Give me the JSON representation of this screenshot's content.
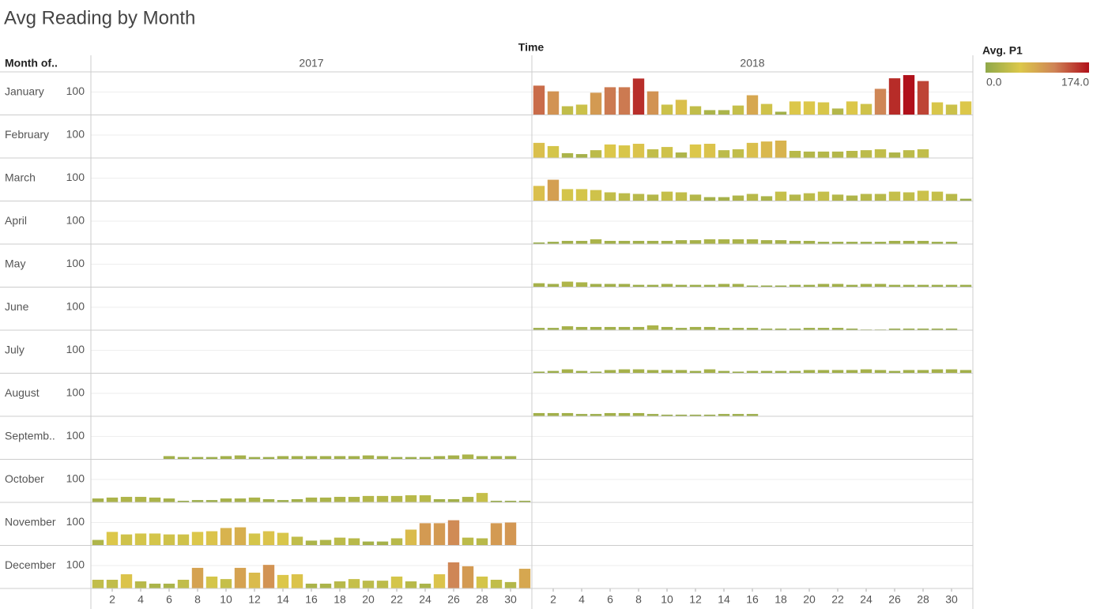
{
  "chart_data": {
    "type": "bar",
    "title": "Avg Reading by Month",
    "column_header": "Time",
    "row_header": "Month of..",
    "columns": [
      "2017",
      "2018"
    ],
    "x": [
      1,
      2,
      3,
      4,
      5,
      6,
      7,
      8,
      9,
      10,
      11,
      12,
      13,
      14,
      15,
      16,
      17,
      18,
      19,
      20,
      21,
      22,
      23,
      24,
      25,
      26,
      27,
      28,
      29,
      30,
      31
    ],
    "xlim": [
      0.5,
      31.5
    ],
    "xticks": [
      2,
      4,
      6,
      8,
      10,
      12,
      14,
      16,
      18,
      20,
      22,
      24,
      26,
      28,
      30
    ],
    "ylim": [
      0,
      188
    ],
    "yticks": [
      100
    ],
    "grid": true,
    "color_legend": {
      "title": "Avg. P1",
      "colors": [
        "#8fa84a",
        "#dcc84a",
        "#cf8456",
        "#b0101a"
      ],
      "range": [
        {
          "value": 0,
          "label": "0.0"
        },
        {
          "value": 174,
          "label": "174.0"
        }
      ]
    },
    "rows": [
      {
        "label": "January",
        "values": [
          [
            null,
            null,
            null,
            null,
            null,
            null,
            null,
            null,
            null,
            null,
            null,
            null,
            null,
            null,
            null,
            null,
            null,
            null,
            null,
            null,
            null,
            null,
            null,
            null,
            null,
            null,
            null,
            null,
            null,
            null,
            null
          ],
          [
            128,
            103,
            38,
            45,
            97,
            121,
            121,
            159,
            103,
            45,
            66,
            38,
            21,
            21,
            41,
            86,
            48,
            14,
            59,
            59,
            55,
            28,
            59,
            48,
            114,
            160,
            174,
            148,
            55,
            45,
            59
          ]
        ]
      },
      {
        "label": "February",
        "values": [
          [
            null,
            null,
            null,
            null,
            null,
            null,
            null,
            null,
            null,
            null,
            null,
            null,
            null,
            null,
            null,
            null,
            null,
            null,
            null,
            null,
            null,
            null,
            null,
            null,
            null,
            null,
            null,
            null,
            null,
            null,
            null
          ],
          [
            66,
            52,
            21,
            17,
            34,
            59,
            55,
            62,
            38,
            48,
            24,
            59,
            62,
            34,
            38,
            66,
            72,
            76,
            31,
            28,
            28,
            28,
            31,
            34,
            38,
            24,
            34,
            38,
            null,
            null,
            null
          ]
        ]
      },
      {
        "label": "March",
        "values": [
          [
            null,
            null,
            null,
            null,
            null,
            null,
            null,
            null,
            null,
            null,
            null,
            null,
            null,
            null,
            null,
            null,
            null,
            null,
            null,
            null,
            null,
            null,
            null,
            null,
            null,
            null,
            null,
            null,
            null,
            null,
            null
          ],
          [
            66,
            93,
            52,
            52,
            48,
            38,
            34,
            31,
            28,
            41,
            38,
            28,
            17,
            17,
            24,
            31,
            21,
            41,
            28,
            34,
            41,
            28,
            24,
            31,
            31,
            41,
            38,
            45,
            41,
            31,
            10
          ]
        ]
      },
      {
        "label": "April",
        "values": [
          [
            null,
            null,
            null,
            null,
            null,
            null,
            null,
            null,
            null,
            null,
            null,
            null,
            null,
            null,
            null,
            null,
            null,
            null,
            null,
            null,
            null,
            null,
            null,
            null,
            null,
            null,
            null,
            null,
            null,
            null,
            null
          ],
          [
            7,
            10,
            14,
            14,
            21,
            14,
            14,
            14,
            14,
            14,
            17,
            17,
            21,
            21,
            21,
            21,
            17,
            17,
            14,
            14,
            10,
            10,
            10,
            10,
            10,
            14,
            14,
            14,
            10,
            10,
            null
          ]
        ]
      },
      {
        "label": "May",
        "values": [
          [
            null,
            null,
            null,
            null,
            null,
            null,
            null,
            null,
            null,
            null,
            null,
            null,
            null,
            null,
            null,
            null,
            null,
            null,
            null,
            null,
            null,
            null,
            null,
            null,
            null,
            null,
            null,
            null,
            null,
            null,
            null
          ],
          [
            17,
            14,
            24,
            21,
            14,
            14,
            14,
            10,
            10,
            14,
            10,
            10,
            10,
            14,
            14,
            7,
            7,
            7,
            10,
            10,
            14,
            14,
            10,
            14,
            14,
            10,
            10,
            10,
            10,
            10,
            10
          ]
        ]
      },
      {
        "label": "June",
        "values": [
          [
            null,
            null,
            null,
            null,
            null,
            null,
            null,
            null,
            null,
            null,
            null,
            null,
            null,
            null,
            null,
            null,
            null,
            null,
            null,
            null,
            null,
            null,
            null,
            null,
            null,
            null,
            null,
            null,
            null,
            null,
            null
          ],
          [
            10,
            10,
            17,
            14,
            14,
            14,
            14,
            14,
            21,
            14,
            10,
            14,
            14,
            10,
            10,
            10,
            7,
            7,
            7,
            10,
            10,
            10,
            7,
            3,
            3,
            7,
            7,
            7,
            7,
            7,
            null
          ]
        ]
      },
      {
        "label": "July",
        "values": [
          [
            null,
            null,
            null,
            null,
            null,
            null,
            null,
            null,
            null,
            null,
            null,
            null,
            null,
            null,
            null,
            null,
            null,
            null,
            null,
            null,
            null,
            null,
            null,
            null,
            null,
            null,
            null,
            null,
            null,
            null,
            null
          ],
          [
            7,
            10,
            17,
            10,
            7,
            14,
            17,
            17,
            14,
            14,
            14,
            10,
            17,
            10,
            7,
            10,
            10,
            10,
            10,
            14,
            14,
            14,
            14,
            17,
            14,
            10,
            14,
            14,
            17,
            17,
            14
          ]
        ]
      },
      {
        "label": "August",
        "values": [
          [
            null,
            null,
            null,
            null,
            null,
            null,
            null,
            null,
            null,
            null,
            null,
            null,
            null,
            null,
            null,
            null,
            null,
            null,
            null,
            null,
            null,
            null,
            null,
            null,
            null,
            null,
            null,
            null,
            null,
            null,
            null
          ],
          [
            14,
            14,
            14,
            10,
            10,
            14,
            14,
            14,
            10,
            7,
            7,
            7,
            7,
            10,
            10,
            10,
            null,
            null,
            null,
            null,
            null,
            null,
            null,
            null,
            null,
            null,
            null,
            null,
            null,
            null,
            null
          ]
        ]
      },
      {
        "label": "Septemb..",
        "values": [
          [
            null,
            null,
            null,
            null,
            null,
            14,
            10,
            10,
            10,
            14,
            17,
            10,
            10,
            14,
            14,
            14,
            14,
            14,
            14,
            17,
            14,
            10,
            10,
            10,
            14,
            17,
            21,
            14,
            14,
            14,
            null
          ],
          [
            null,
            null,
            null,
            null,
            null,
            null,
            null,
            null,
            null,
            null,
            null,
            null,
            null,
            null,
            null,
            null,
            null,
            null,
            null,
            null,
            null,
            null,
            null,
            null,
            null,
            null,
            null,
            null,
            null,
            null,
            null
          ]
        ]
      },
      {
        "label": "October",
        "values": [
          [
            17,
            21,
            24,
            24,
            21,
            17,
            7,
            10,
            10,
            17,
            17,
            21,
            14,
            10,
            14,
            21,
            21,
            24,
            24,
            28,
            28,
            28,
            31,
            31,
            14,
            14,
            24,
            41,
            7,
            7,
            7
          ],
          [
            null,
            null,
            null,
            null,
            null,
            null,
            null,
            null,
            null,
            null,
            null,
            null,
            null,
            null,
            null,
            null,
            null,
            null,
            null,
            null,
            null,
            null,
            null,
            null,
            null,
            null,
            null,
            null,
            null,
            null,
            null
          ]
        ]
      },
      {
        "label": "November",
        "values": [
          [
            24,
            59,
            48,
            52,
            52,
            48,
            48,
            59,
            62,
            76,
            79,
            52,
            62,
            55,
            38,
            21,
            24,
            34,
            31,
            17,
            17,
            31,
            69,
            97,
            97,
            110,
            34,
            31,
            97,
            100,
            null
          ],
          [
            null,
            null,
            null,
            null,
            null,
            null,
            null,
            null,
            null,
            null,
            null,
            null,
            null,
            null,
            null,
            null,
            null,
            null,
            null,
            null,
            null,
            null,
            null,
            null,
            null,
            null,
            null,
            null,
            null,
            null,
            null
          ]
        ]
      },
      {
        "label": "December",
        "values": [
          [
            38,
            38,
            62,
            31,
            21,
            21,
            38,
            90,
            52,
            41,
            90,
            69,
            103,
            59,
            62,
            21,
            21,
            31,
            41,
            34,
            34,
            52,
            31,
            21,
            62,
            114,
            97,
            52,
            38,
            28,
            86
          ],
          [
            null,
            null,
            null,
            null,
            null,
            null,
            null,
            null,
            null,
            null,
            null,
            null,
            null,
            null,
            null,
            null,
            null,
            null,
            null,
            null,
            null,
            null,
            null,
            null,
            null,
            null,
            null,
            null,
            null,
            null,
            null
          ]
        ]
      }
    ]
  }
}
